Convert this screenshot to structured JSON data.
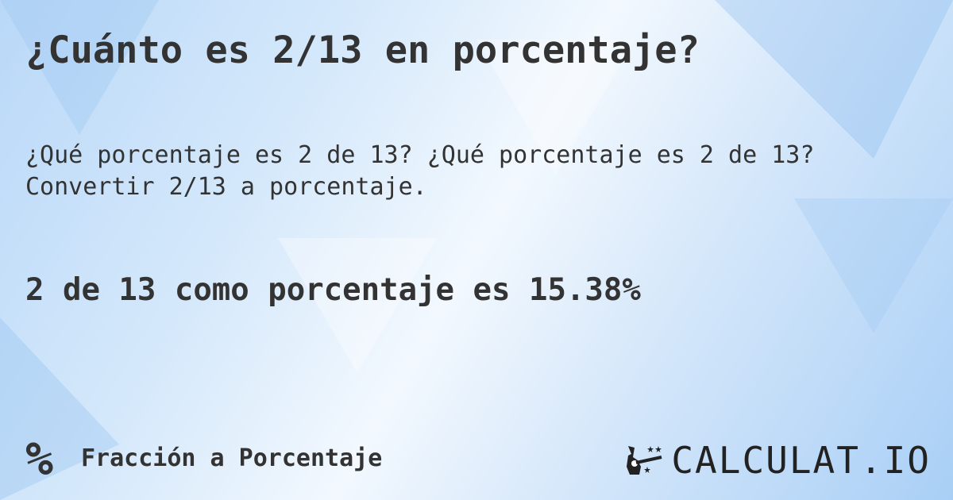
{
  "title": "¿Cuánto es 2/13 en porcentaje?",
  "question_line1": "¿Qué porcentaje es 2 de 13? ¿Qué porcentaje es 2 de 13?",
  "question_line2": "Convertir 2/13 a porcentaje.",
  "result": "2 de 13 como porcentaje es 15.38%",
  "footer": {
    "icon": "percent-icon",
    "icon_glyph": "%",
    "label": "Fracción a Porcentaje"
  },
  "logo": {
    "icon": "magic-hand-icon",
    "text": "CALCULAT.IO"
  }
}
